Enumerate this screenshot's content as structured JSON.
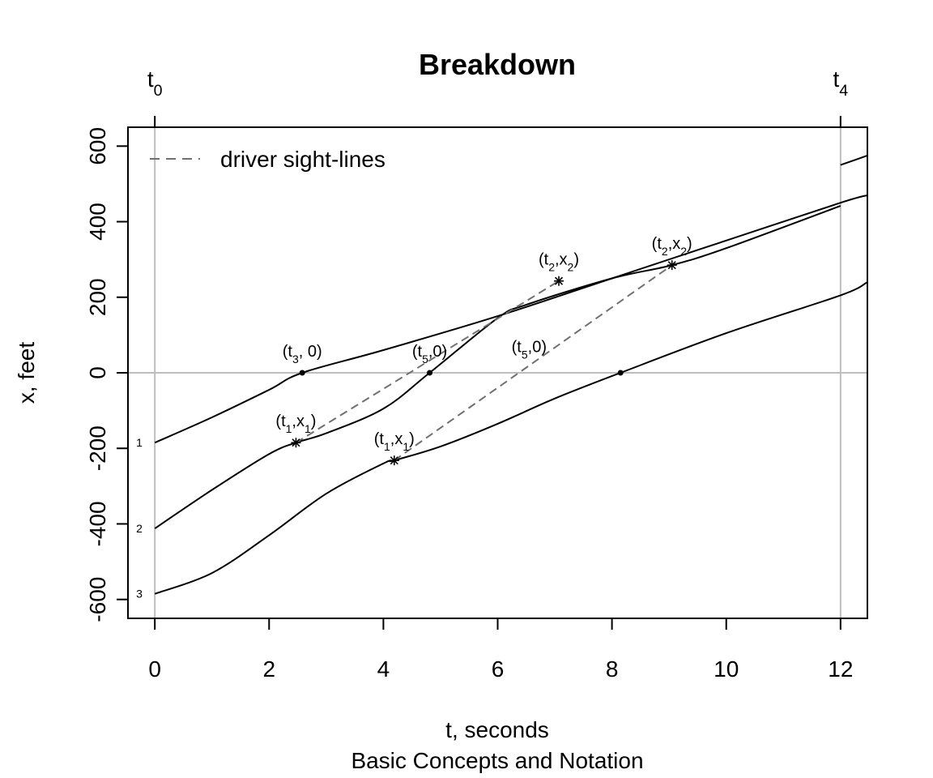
{
  "chart_data": {
    "type": "line",
    "title": "Breakdown",
    "xlabel": "t, seconds",
    "ylabel": "x, feet",
    "subtitle": "Basic Concepts and Notation",
    "xlim": [
      -0.47,
      12.47
    ],
    "ylim": [
      -650,
      650
    ],
    "xticks": [
      "0",
      "2",
      "4",
      "6",
      "8",
      "10",
      "12"
    ],
    "yticks": [
      "-600",
      "-400",
      "-200",
      "0",
      "200",
      "400",
      "600"
    ],
    "top_axis": {
      "t0": {
        "main": "t",
        "sub": "0"
      },
      "t4": {
        "main": "t",
        "sub": "4"
      }
    },
    "legend": {
      "label": "driver sight-lines",
      "position": "top-left"
    },
    "grid": false,
    "reference_lines": {
      "horizontal_y": 0,
      "vertical_x": [
        0,
        12
      ]
    },
    "colors": {
      "trajectory": "#000000",
      "sightline": "#707070",
      "reference": "#bebebe"
    },
    "series": [
      {
        "name": "1",
        "points": [
          [
            0,
            -185
          ],
          [
            1,
            -118
          ],
          [
            2,
            -45
          ],
          [
            2.58,
            0
          ],
          [
            4,
            60
          ],
          [
            6,
            150
          ],
          [
            8,
            250
          ],
          [
            10,
            350
          ],
          [
            12,
            450
          ],
          [
            12.47,
            470
          ]
        ]
      },
      {
        "name": "1",
        "points": [
          [
            12,
            550
          ],
          [
            12.47,
            575
          ]
        ]
      },
      {
        "name": "2",
        "points": [
          [
            0,
            -412
          ],
          [
            1,
            -310
          ],
          [
            2,
            -215
          ],
          [
            2.47,
            -185
          ],
          [
            3,
            -160
          ],
          [
            4,
            -95
          ],
          [
            4.81,
            0
          ],
          [
            6,
            145
          ],
          [
            6.5,
            180
          ],
          [
            8,
            250
          ],
          [
            9.05,
            285
          ],
          [
            10,
            330
          ],
          [
            12,
            442
          ]
        ]
      },
      {
        "name": "3",
        "points": [
          [
            0,
            -585
          ],
          [
            1,
            -530
          ],
          [
            2,
            -430
          ],
          [
            3,
            -320
          ],
          [
            4,
            -240
          ],
          [
            4.19,
            -232
          ],
          [
            5,
            -195
          ],
          [
            6,
            -135
          ],
          [
            7,
            -68
          ],
          [
            8.15,
            0
          ],
          [
            10,
            105
          ],
          [
            12,
            205
          ],
          [
            12.47,
            240
          ]
        ]
      }
    ],
    "sight_lines": [
      {
        "from": [
          2.47,
          -185
        ],
        "to": [
          7.07,
          243
        ]
      },
      {
        "from": [
          4.19,
          -232
        ],
        "to": [
          9.05,
          285
        ]
      }
    ],
    "points": [
      {
        "x": 2.58,
        "y": 0,
        "marker": "dot",
        "label_main": "(t",
        "label_sub": "3",
        "label_tail": ", 0)"
      },
      {
        "x": 4.81,
        "y": 0,
        "marker": "dot",
        "label_main": "(t",
        "label_sub": "5",
        "label_tail": ",0)"
      },
      {
        "x": 8.15,
        "y": 0,
        "marker": "dot",
        "label_main": "",
        "label_sub": "",
        "label_tail": ""
      },
      {
        "x": 2.47,
        "y": -185,
        "marker": "star",
        "label_main": "(t",
        "label_sub": "1",
        "label_tail": ",x",
        "label_sub2": "1",
        "label_end": ")"
      },
      {
        "x": 7.07,
        "y": 243,
        "marker": "star",
        "label_main": "(t",
        "label_sub": "2",
        "label_tail": ",x",
        "label_sub2": "2",
        "label_end": ")"
      },
      {
        "x": 4.19,
        "y": -232,
        "marker": "star",
        "label_main": "(t",
        "label_sub": "1",
        "label_tail": ",x",
        "label_sub2": "1",
        "label_end": ")"
      },
      {
        "x": 9.05,
        "y": 285,
        "marker": "star",
        "label_main": "(t",
        "label_sub": "2",
        "label_tail": ",x",
        "label_sub2": "2",
        "label_end": ")"
      }
    ],
    "extra_labels": [
      {
        "x": 6.55,
        "y": 55,
        "main": "(t",
        "sub": "5",
        "tail": ",0)"
      }
    ],
    "line_labels": [
      {
        "label": "1",
        "y": -185
      },
      {
        "label": "2",
        "y": -412
      },
      {
        "label": "3",
        "y": -585
      }
    ]
  }
}
